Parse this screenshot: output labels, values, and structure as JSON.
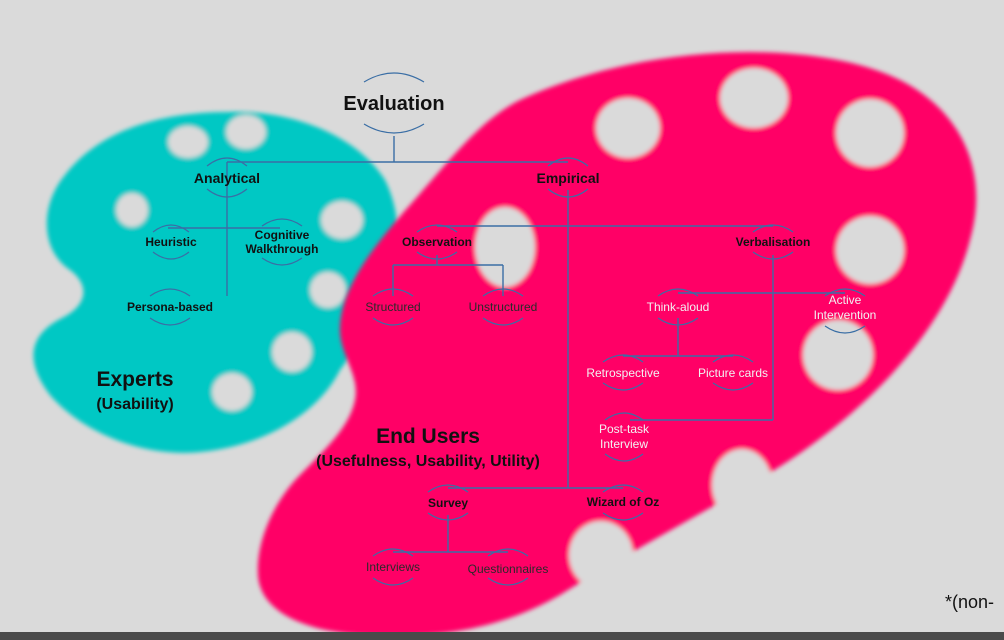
{
  "diagram": {
    "root": "Evaluation",
    "analytical": "Analytical",
    "empirical": "Empirical",
    "heuristic": "Heuristic",
    "cognitive_l1": "Cognitive",
    "cognitive_l2": "Walkthrough",
    "persona": "Persona-based",
    "observation": "Observation",
    "verbalisation": "Verbalisation",
    "structured": "Structured",
    "unstructured": "Unstructured",
    "think_aloud": "Think-aloud",
    "active_l1": "Active",
    "active_l2": "Intervention",
    "retrospective": "Retrospective",
    "picture_cards": "Picture cards",
    "posttask_l1": "Post-task",
    "posttask_l2": "Interview",
    "survey": "Survey",
    "wizard": "Wizard of Oz",
    "interviews": "Interviews",
    "questionnaires": "Questionnaires",
    "experts_title": "Experts",
    "experts_sub": "(Usability)",
    "endusers_title": "End Users",
    "endusers_sub": "(Usefulness, Usability, Utility)",
    "footnote": "*(non-"
  },
  "colors": {
    "background": "#dadada",
    "expert_palette": "#00c8c4",
    "enduser_palette": "#ff0066",
    "connector": "#3a6ea5"
  }
}
